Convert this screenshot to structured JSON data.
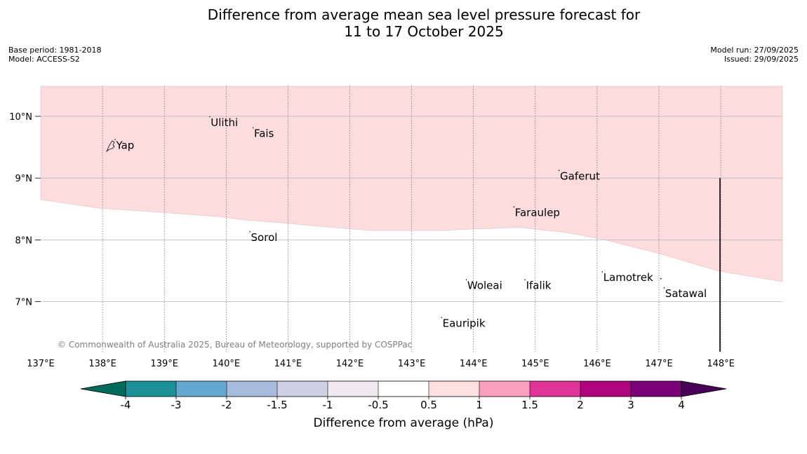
{
  "title": {
    "line1": "Difference from average mean sea level pressure forecast for",
    "line2": "11 to 17 October 2025"
  },
  "meta": {
    "base_period": "Base period: 1981-2018",
    "model": "Model: ACCESS-S2",
    "model_run": "Model run: 27/09/2025",
    "issued": "Issued: 29/09/2025"
  },
  "map": {
    "lon_labels": [
      "137°E",
      "138°E",
      "139°E",
      "140°E",
      "141°E",
      "142°E",
      "143°E",
      "144°E",
      "145°E",
      "146°E",
      "147°E",
      "148°E"
    ],
    "lat_labels": [
      "10°N",
      "9°N",
      "8°N",
      "7°N"
    ],
    "places": [
      {
        "name": "Yap",
        "lon": 138.22,
        "lat": 9.53
      },
      {
        "name": "Ulithi",
        "lon": 139.75,
        "lat": 9.9
      },
      {
        "name": "Fais",
        "lon": 140.45,
        "lat": 9.72
      },
      {
        "name": "Gaferut",
        "lon": 145.4,
        "lat": 9.03
      },
      {
        "name": "Faraulep",
        "lon": 144.67,
        "lat": 8.44
      },
      {
        "name": "Sorol",
        "lon": 140.4,
        "lat": 8.04
      },
      {
        "name": "Woleai",
        "lon": 143.9,
        "lat": 7.26
      },
      {
        "name": "Ifalik",
        "lon": 144.85,
        "lat": 7.26
      },
      {
        "name": "Lamotrek",
        "lon": 146.1,
        "lat": 7.39
      },
      {
        "name": "Satawal",
        "lon": 147.1,
        "lat": 7.13
      },
      {
        "name": "Eauripik",
        "lon": 143.5,
        "lat": 6.65
      }
    ],
    "fill_color": "#fcdcdc",
    "fill_category": "0.5 to 1",
    "copyright": "© Commonwealth of Australia 2025, Bureau of Meteorology, supported by COSPPac"
  },
  "colorbar": {
    "ticks": [
      "-4",
      "-3",
      "-2",
      "-1.5",
      "-1",
      "-0.5",
      "0.5",
      "1",
      "1.5",
      "2",
      "3",
      "4"
    ],
    "colors": [
      "#1b9096",
      "#64a8d0",
      "#a7bcdc",
      "#cfd0e6",
      "#f0eaf0",
      "#ffffff",
      "#fde0e0",
      "#f9a0be",
      "#df3598",
      "#b0047e",
      "#7a0077"
    ],
    "low_extend_color": "#006a5c",
    "high_extend_color": "#480057",
    "label": "Difference from average (hPa)"
  }
}
